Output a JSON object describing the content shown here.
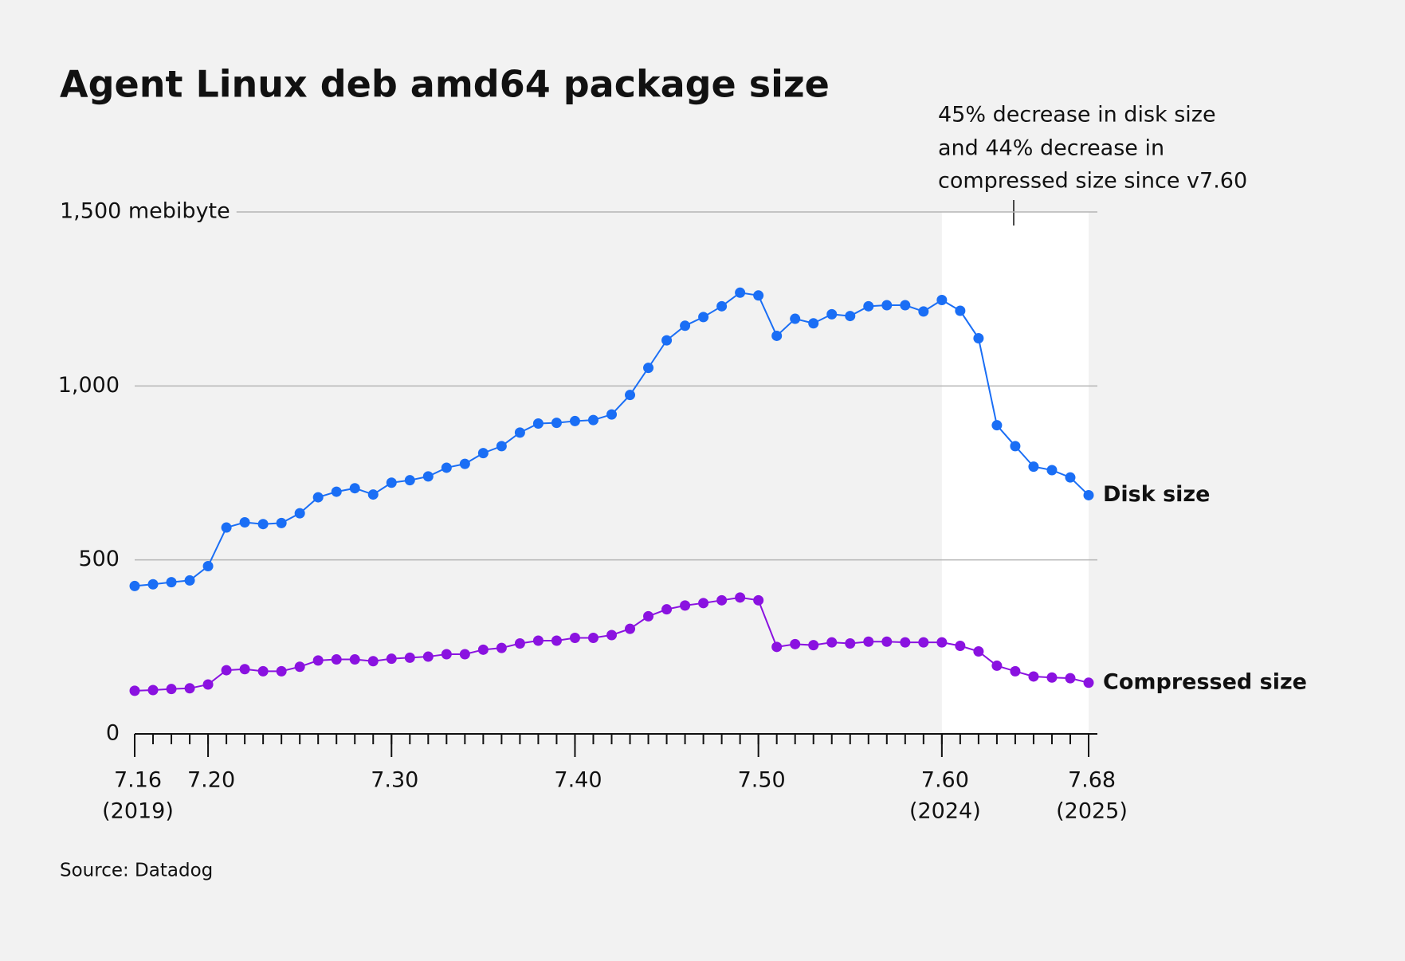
{
  "chart_data": {
    "type": "line",
    "title": "Agent Linux deb amd64 package size",
    "source": "Source: Datadog",
    "annotation": [
      "45% decrease in disk size",
      "and 44% decrease in",
      "compressed size since v7.60"
    ],
    "highlight": [
      60,
      68
    ],
    "x": [
      16,
      17,
      18,
      19,
      20,
      21,
      22,
      23,
      24,
      25,
      26,
      27,
      28,
      29,
      30,
      31,
      32,
      33,
      34,
      35,
      36,
      37,
      38,
      39,
      40,
      41,
      42,
      43,
      44,
      45,
      46,
      47,
      48,
      49,
      50,
      51,
      52,
      53,
      54,
      55,
      56,
      57,
      58,
      59,
      60,
      61,
      62,
      63,
      64,
      65,
      66,
      67,
      68
    ],
    "series": [
      {
        "name": "Disk size",
        "color": "#1a6ef5",
        "values": [
          425,
          430,
          436,
          441,
          482,
          593,
          608,
          603,
          606,
          634,
          680,
          696,
          706,
          688,
          722,
          729,
          740,
          765,
          776,
          807,
          827,
          866,
          892,
          894,
          899,
          902,
          918,
          974,
          1052,
          1131,
          1173,
          1198,
          1229,
          1268,
          1260,
          1144,
          1193,
          1180,
          1206,
          1201,
          1229,
          1232,
          1232,
          1214,
          1247,
          1216,
          1137,
          887,
          827,
          768,
          758,
          737,
          686
        ]
      },
      {
        "name": "Compressed size",
        "color": "#8a12e0",
        "values": [
          124,
          126,
          129,
          131,
          142,
          183,
          186,
          180,
          180,
          193,
          211,
          214,
          214,
          209,
          216,
          219,
          222,
          229,
          229,
          242,
          247,
          260,
          268,
          268,
          276,
          276,
          284,
          302,
          338,
          358,
          369,
          376,
          384,
          392,
          384,
          250,
          258,
          255,
          263,
          260,
          265,
          265,
          263,
          263,
          263,
          253,
          237,
          196,
          180,
          165,
          162,
          160,
          147
        ]
      }
    ],
    "xlim": [
      16,
      68
    ],
    "xticks": [
      {
        "value": 16,
        "label": "7.16"
      },
      {
        "value": 20,
        "label": "7.20"
      },
      {
        "value": 30,
        "label": "7.30"
      },
      {
        "value": 40,
        "label": "7.40"
      },
      {
        "value": 50,
        "label": "7.50"
      },
      {
        "value": 60,
        "label": "7.60"
      },
      {
        "value": 68,
        "label": "7.68"
      }
    ],
    "year_labels": [
      {
        "value": 16,
        "label": "(2019)"
      },
      {
        "value": 60,
        "label": "(2024)"
      },
      {
        "value": 68,
        "label": "(2025)"
      }
    ],
    "ylim": [
      0,
      1500
    ],
    "yticks": [
      0,
      500,
      {
        "value": 1000,
        "label": "1,000"
      },
      {
        "value": 1500,
        "label": "1,500 mebibyte"
      }
    ],
    "grid": true
  }
}
